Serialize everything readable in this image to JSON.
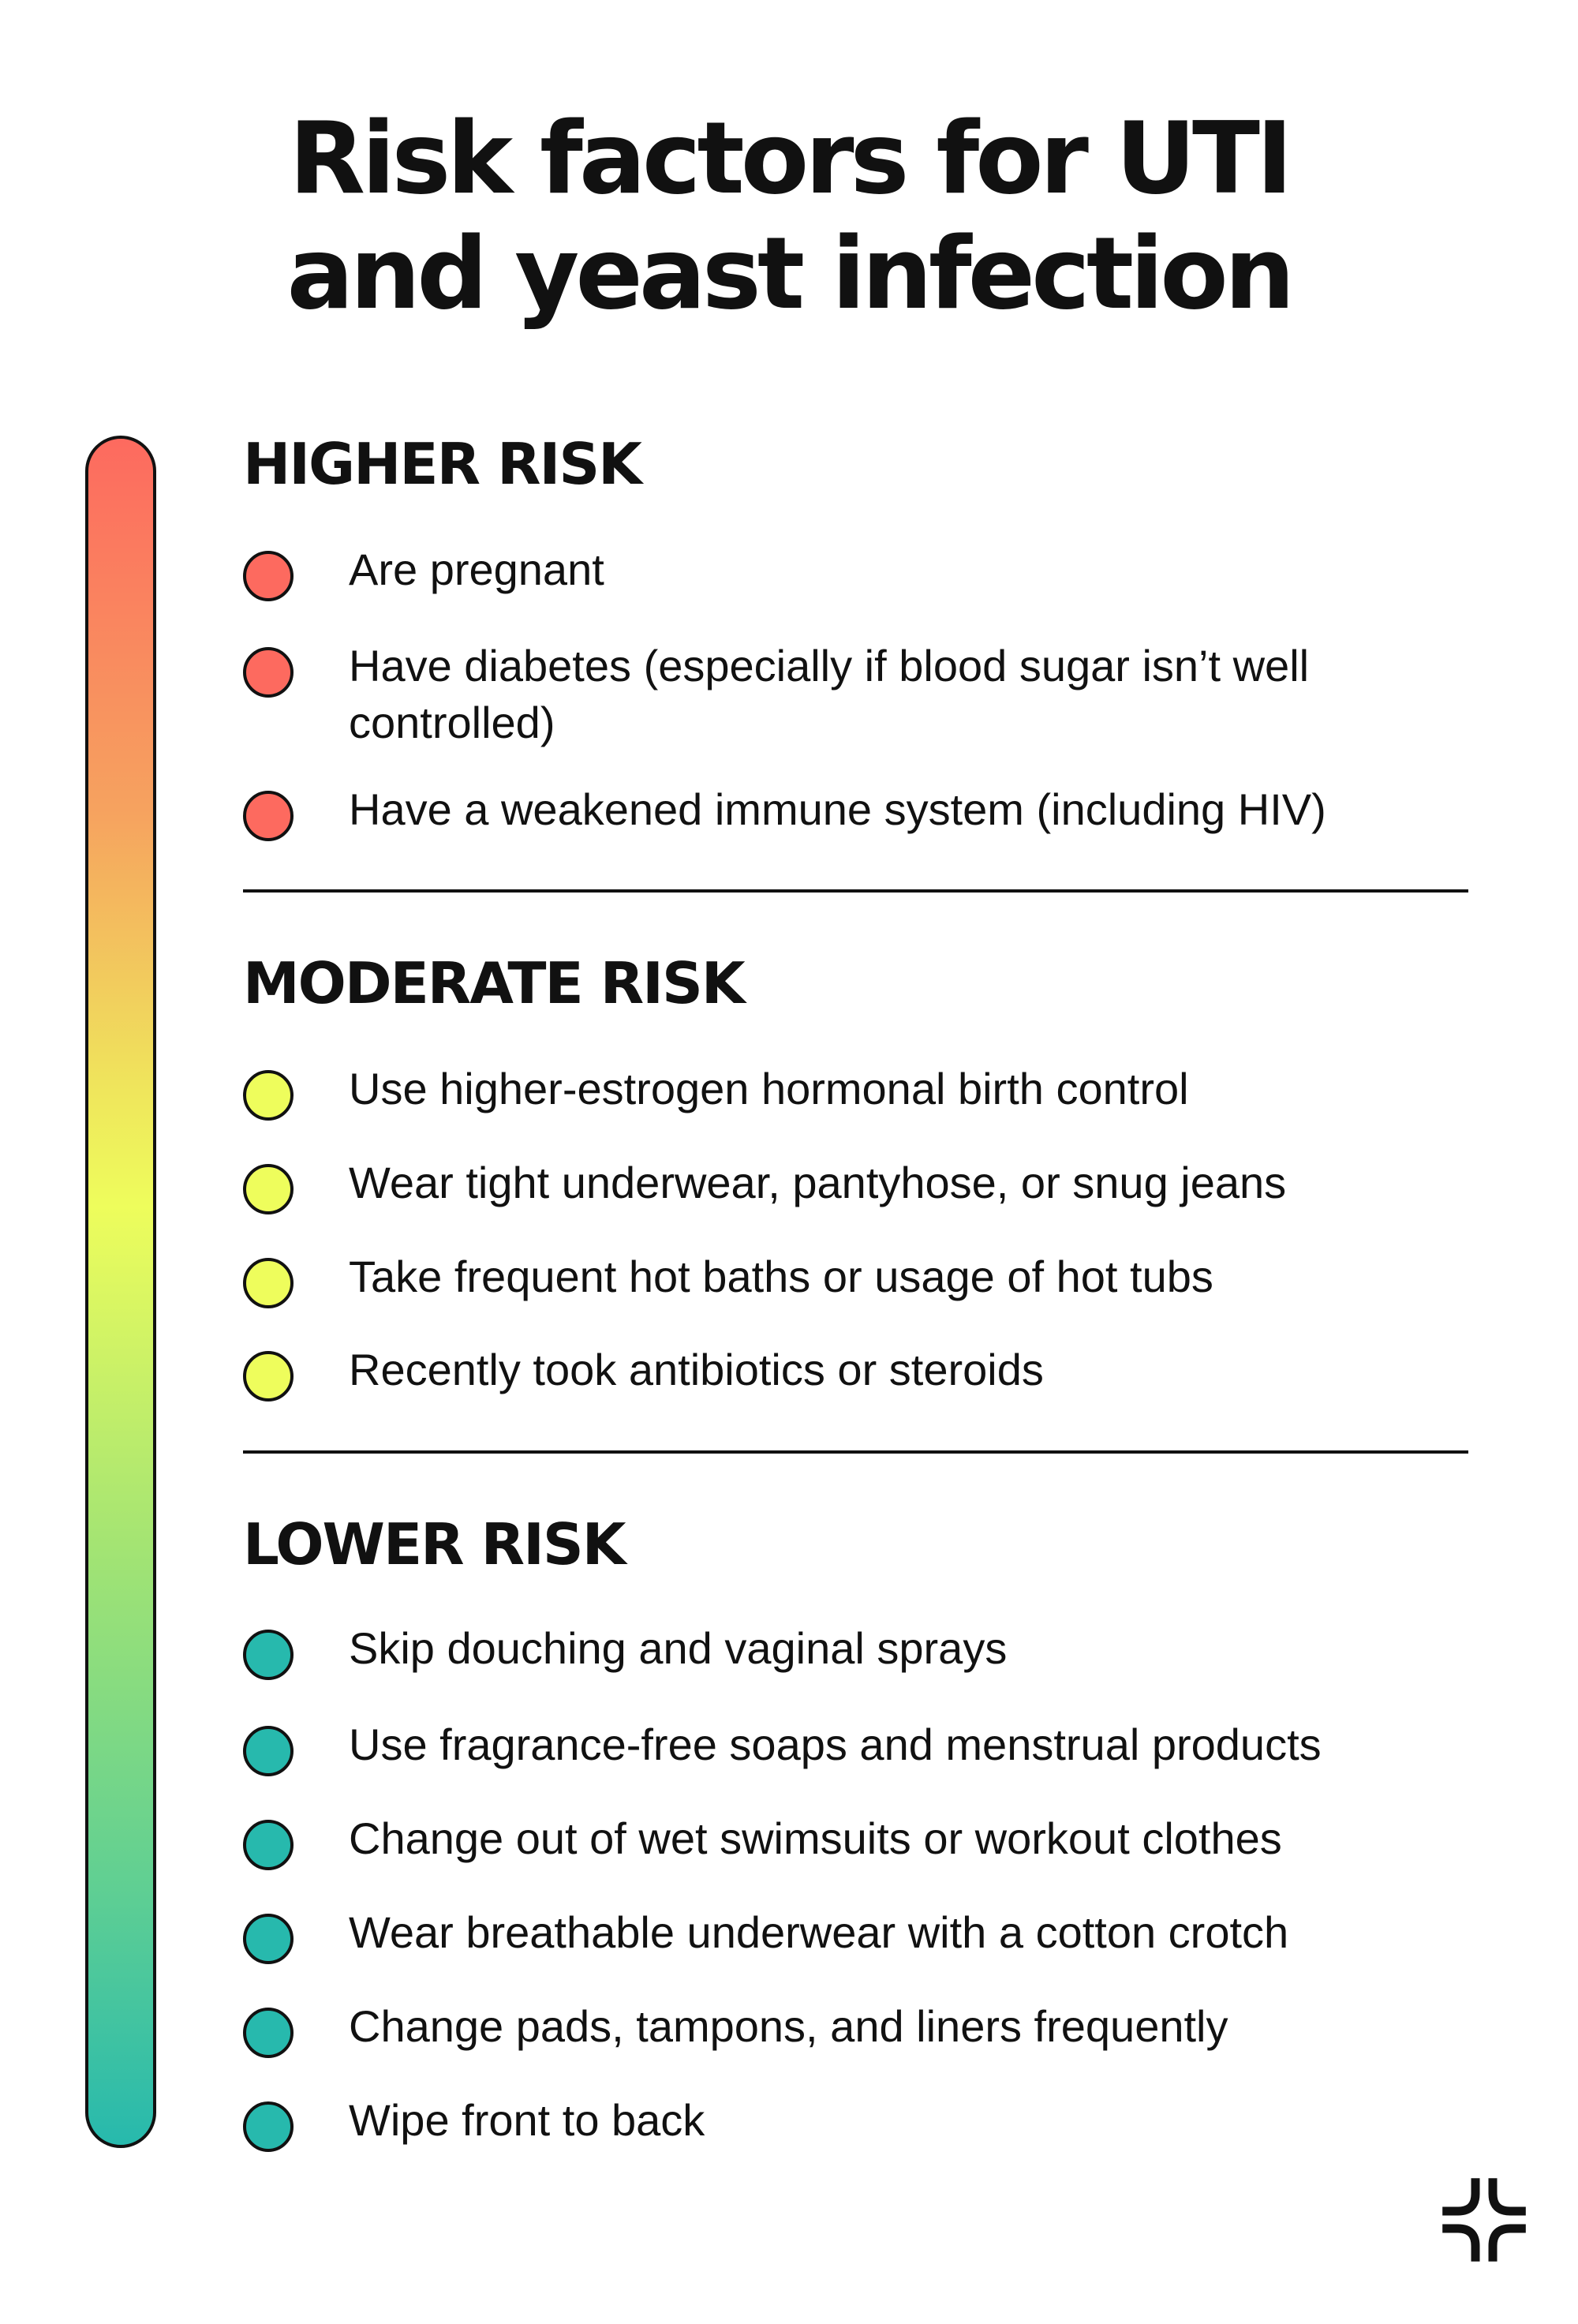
{
  "title": {
    "line1": "Risk factors for UTI",
    "line2": "and yeast infection"
  },
  "colors": {
    "high": "#fd6a5f",
    "moderate": "#eefd5c",
    "low": "#27b9ad",
    "ink": "#111111"
  },
  "sections": [
    {
      "heading": "HIGHER RISK",
      "level": "high",
      "items": [
        "Are pregnant",
        "Have diabetes (especially if blood sugar isn’t well controlled)",
        "Have a weakened immune system (including HIV)"
      ]
    },
    {
      "heading": "MODERATE RISK",
      "level": "moderate",
      "items": [
        "Use higher-estrogen hormonal birth control",
        "Wear tight underwear, pantyhose, or snug jeans",
        "Take frequent hot baths or usage of hot tubs",
        "Recently took antibiotics or steroids"
      ]
    },
    {
      "heading": "LOWER RISK",
      "level": "low",
      "items": [
        "Skip douching and vaginal sprays",
        "Use fragrance-free soaps and menstrual products",
        "Change out of wet swimsuits or workout clothes",
        "Wear breathable underwear with a cotton crotch",
        "Change pads, tampons, and liners frequently",
        "Wipe front to back"
      ]
    }
  ],
  "logo": {
    "icon": "brand-cross-logo-icon"
  }
}
